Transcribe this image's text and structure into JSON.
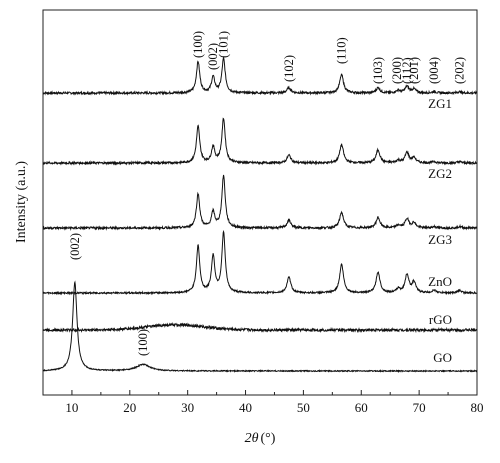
{
  "chart_data": {
    "type": "line",
    "xlabel_italic": "2θ",
    "xlabel_unit": "(°)",
    "ylabel": "Intensity (a.u.)",
    "xlim": [
      5,
      80
    ],
    "xticks": [
      10,
      20,
      30,
      40,
      50,
      60,
      70,
      80
    ],
    "x_tick_labels": [
      "10",
      "20",
      "30",
      "40",
      "50",
      "60",
      "70",
      "80"
    ],
    "grid": false,
    "series": [
      {
        "name": "ZG1",
        "baseline": 0.0,
        "noise": 0.008,
        "hump": {
          "center": 28,
          "width": 6,
          "height": 0.0
        },
        "peaks": [
          [
            31.8,
            0.12,
            0.35
          ],
          [
            34.4,
            0.06,
            0.35
          ],
          [
            36.2,
            0.13,
            0.35
          ],
          [
            47.5,
            0.02,
            0.4
          ],
          [
            56.6,
            0.07,
            0.4
          ],
          [
            62.9,
            0.02,
            0.4
          ],
          [
            66.4,
            0.01,
            0.4
          ],
          [
            67.9,
            0.025,
            0.4
          ],
          [
            69.1,
            0.015,
            0.4
          ],
          [
            72.6,
            0.005,
            0.4
          ],
          [
            77.0,
            0.005,
            0.4
          ]
        ]
      },
      {
        "name": "ZG2",
        "baseline": 0.0,
        "noise": 0.008,
        "hump": {
          "center": 28,
          "width": 6,
          "height": 0.0
        },
        "peaks": [
          [
            31.8,
            0.14,
            0.35
          ],
          [
            34.4,
            0.06,
            0.35
          ],
          [
            36.2,
            0.17,
            0.35
          ],
          [
            47.5,
            0.03,
            0.4
          ],
          [
            56.6,
            0.07,
            0.4
          ],
          [
            62.9,
            0.05,
            0.4
          ],
          [
            66.4,
            0.01,
            0.4
          ],
          [
            67.9,
            0.04,
            0.4
          ],
          [
            69.1,
            0.02,
            0.4
          ],
          [
            72.6,
            0.005,
            0.4
          ],
          [
            77.0,
            0.005,
            0.4
          ]
        ]
      },
      {
        "name": "ZG3",
        "baseline": 0.0,
        "noise": 0.008,
        "hump": {
          "center": 28,
          "width": 6,
          "height": 0.0
        },
        "peaks": [
          [
            31.8,
            0.13,
            0.35
          ],
          [
            34.4,
            0.06,
            0.35
          ],
          [
            36.2,
            0.2,
            0.35
          ],
          [
            47.5,
            0.03,
            0.4
          ],
          [
            56.6,
            0.06,
            0.4
          ],
          [
            62.9,
            0.04,
            0.4
          ],
          [
            66.4,
            0.01,
            0.4
          ],
          [
            67.9,
            0.035,
            0.4
          ],
          [
            69.1,
            0.02,
            0.4
          ],
          [
            72.6,
            0.005,
            0.4
          ],
          [
            77.0,
            0.005,
            0.4
          ]
        ]
      },
      {
        "name": "ZnO",
        "baseline": 0.0,
        "noise": 0.006,
        "hump": {
          "center": 28,
          "width": 6,
          "height": 0.0
        },
        "peaks": [
          [
            31.8,
            0.18,
            0.35
          ],
          [
            34.4,
            0.14,
            0.35
          ],
          [
            36.2,
            0.23,
            0.35
          ],
          [
            47.5,
            0.06,
            0.4
          ],
          [
            56.6,
            0.11,
            0.4
          ],
          [
            62.9,
            0.08,
            0.4
          ],
          [
            66.4,
            0.015,
            0.4
          ],
          [
            67.9,
            0.07,
            0.4
          ],
          [
            69.1,
            0.04,
            0.4
          ],
          [
            72.6,
            0.01,
            0.4
          ],
          [
            77.0,
            0.01,
            0.4
          ]
        ]
      },
      {
        "name": "rGO",
        "baseline": 0.0,
        "noise": 0.01,
        "hump": {
          "center": 28,
          "width": 7,
          "height": 0.02
        },
        "peaks": []
      },
      {
        "name": "GO",
        "baseline": 0.0,
        "noise": 0.004,
        "hump": {
          "center": 22.5,
          "width": 4,
          "height": 0.0
        },
        "peaks": [
          [
            10.5,
            0.34,
            0.45
          ],
          [
            22.3,
            0.025,
            1.4
          ]
        ]
      }
    ],
    "peak_annotations": [
      {
        "text": "(100)",
        "x": 31.8,
        "series": "ZG1"
      },
      {
        "text": "(002)",
        "x": 34.4,
        "series": "ZG1"
      },
      {
        "text": "(101)",
        "x": 36.2,
        "series": "ZG1"
      },
      {
        "text": "(102)",
        "x": 47.5,
        "series": "ZG1"
      },
      {
        "text": "(110)",
        "x": 56.6,
        "series": "ZG1"
      },
      {
        "text": "(103)",
        "x": 62.9,
        "series": "ZG1"
      },
      {
        "text": "(200)",
        "x": 66.2,
        "series": "ZG1"
      },
      {
        "text": "(112)",
        "x": 67.9,
        "series": "ZG1"
      },
      {
        "text": "(201)",
        "x": 69.1,
        "series": "ZG1"
      },
      {
        "text": "(004)",
        "x": 72.6,
        "series": "ZG1"
      },
      {
        "text": "(202)",
        "x": 77.0,
        "series": "ZG1"
      },
      {
        "text": "(002)",
        "x": 10.5,
        "series": "GO"
      },
      {
        "text": "(100)",
        "x": 22.3,
        "series": "GO"
      }
    ]
  }
}
